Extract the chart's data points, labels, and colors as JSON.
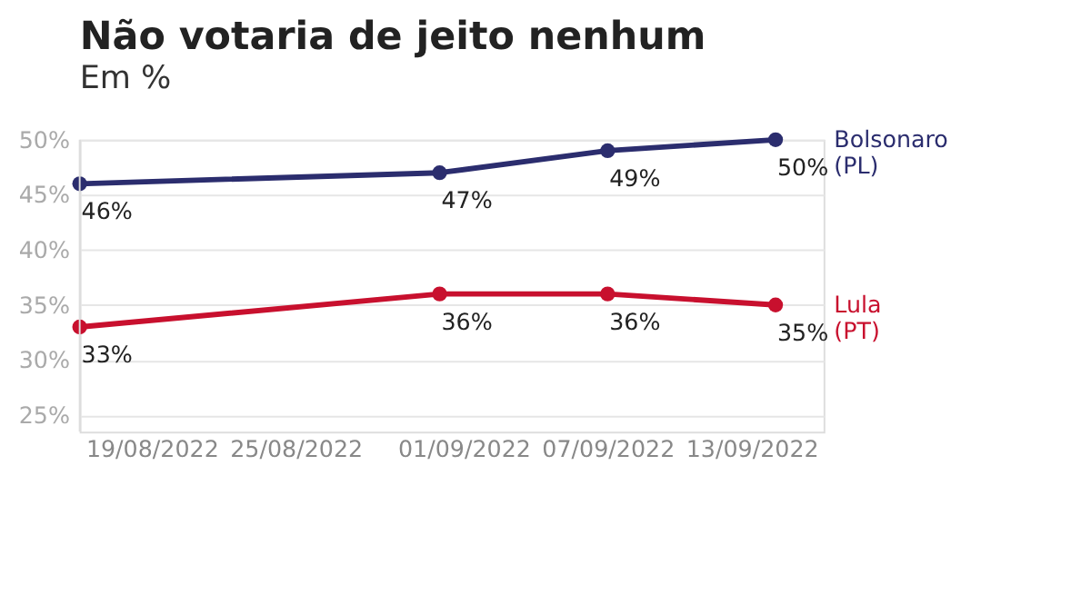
{
  "chart_data": {
    "type": "line",
    "title": "Não votaria de jeito nenhum",
    "subtitle": "Em %",
    "x": [
      "2022-08-16",
      "2022-08-31",
      "2022-09-07",
      "2022-09-14"
    ],
    "series": [
      {
        "name": "Bolsonaro (PL)",
        "color": "#2b2d6e",
        "values": [
          46,
          47,
          49,
          50
        ],
        "value_labels": [
          "46%",
          "47%",
          "49%",
          "50%"
        ]
      },
      {
        "name": "Lula (PT)",
        "color": "#c8102e",
        "values": [
          33,
          36,
          36,
          35
        ],
        "value_labels": [
          "33%",
          "36%",
          "36%",
          "35%"
        ]
      }
    ],
    "xlim": [
      "2022-08-16",
      "2022-09-16"
    ],
    "xticks": [
      {
        "value": "2022-08-19",
        "label": "19/08/2022"
      },
      {
        "value": "2022-08-25",
        "label": "25/08/2022"
      },
      {
        "value": "2022-09-01",
        "label": "01/09/2022"
      },
      {
        "value": "2022-09-07",
        "label": "07/09/2022"
      },
      {
        "value": "2022-09-13",
        "label": "13/09/2022"
      }
    ],
    "ylim": [
      23.5,
      50
    ],
    "yticks": [
      {
        "value": 25,
        "label": "25%"
      },
      {
        "value": 30,
        "label": "30%"
      },
      {
        "value": 35,
        "label": "35%"
      },
      {
        "value": 40,
        "label": "40%"
      },
      {
        "value": 45,
        "label": "45%"
      },
      {
        "value": 50,
        "label": "50%"
      }
    ],
    "grid": "y",
    "legend": false,
    "marker": "circle",
    "line_style": "solid"
  }
}
